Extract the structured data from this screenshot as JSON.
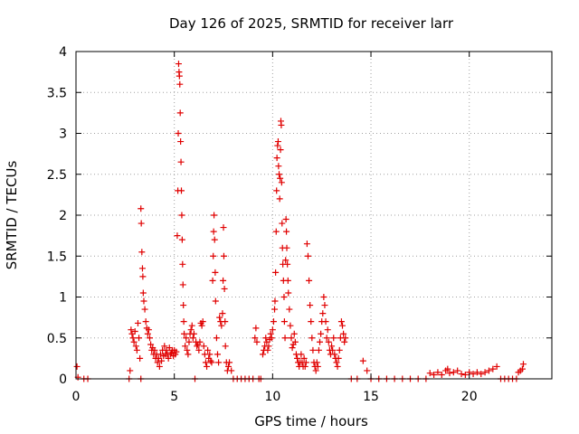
{
  "chart_data": {
    "type": "scatter",
    "title": "Day 126 of 2025, SRMTID for receiver larr",
    "xlabel": "GPS time / hours",
    "ylabel": "SRMTID / TECUs",
    "xlim": [
      0,
      24.2
    ],
    "ylim": [
      0,
      4
    ],
    "x_ticks": [
      0,
      5,
      10,
      15,
      20
    ],
    "x_tick_labels": [
      "0",
      "5",
      "10",
      "15",
      "20"
    ],
    "y_ticks": [
      0,
      0.5,
      1,
      1.5,
      2,
      2.5,
      3,
      3.5,
      4
    ],
    "y_tick_labels": [
      "0",
      "0.5",
      "1",
      "1.5",
      "2",
      "2.5",
      "3",
      "3.5",
      "4"
    ],
    "grid": true,
    "marker": "plus",
    "colors": {
      "marker": "#e00000",
      "grid": "#a0a0a0",
      "axis": "#000000"
    },
    "series": [
      {
        "name": "SRMTID",
        "points": [
          [
            0.05,
            0.15
          ],
          [
            0.1,
            0.02
          ],
          [
            0.4,
            0.0
          ],
          [
            0.6,
            0.0
          ],
          [
            2.7,
            0.0
          ],
          [
            2.75,
            0.1
          ],
          [
            2.8,
            0.6
          ],
          [
            2.85,
            0.55
          ],
          [
            2.9,
            0.5
          ],
          [
            2.95,
            0.45
          ],
          [
            3.0,
            0.58
          ],
          [
            3.05,
            0.4
          ],
          [
            3.1,
            0.35
          ],
          [
            3.15,
            0.68
          ],
          [
            3.2,
            0.5
          ],
          [
            3.25,
            0.25
          ],
          [
            3.3,
            0.0
          ],
          [
            3.3,
            2.08
          ],
          [
            3.32,
            1.9
          ],
          [
            3.35,
            1.55
          ],
          [
            3.38,
            1.35
          ],
          [
            3.4,
            1.25
          ],
          [
            3.42,
            1.05
          ],
          [
            3.45,
            0.95
          ],
          [
            3.5,
            0.85
          ],
          [
            3.55,
            0.7
          ],
          [
            3.6,
            0.62
          ],
          [
            3.65,
            0.55
          ],
          [
            3.7,
            0.6
          ],
          [
            3.75,
            0.5
          ],
          [
            3.8,
            0.42
          ],
          [
            3.85,
            0.35
          ],
          [
            3.9,
            0.38
          ],
          [
            3.95,
            0.3
          ],
          [
            4.0,
            0.35
          ],
          [
            4.05,
            0.25
          ],
          [
            4.1,
            0.3
          ],
          [
            4.15,
            0.2
          ],
          [
            4.2,
            0.25
          ],
          [
            4.25,
            0.15
          ],
          [
            4.3,
            0.3
          ],
          [
            4.35,
            0.22
          ],
          [
            4.4,
            0.35
          ],
          [
            4.45,
            0.28
          ],
          [
            4.5,
            0.4
          ],
          [
            4.55,
            0.3
          ],
          [
            4.6,
            0.35
          ],
          [
            4.65,
            0.3
          ],
          [
            4.7,
            0.25
          ],
          [
            4.75,
            0.38
          ],
          [
            4.8,
            0.3
          ],
          [
            4.85,
            0.32
          ],
          [
            4.9,
            0.35
          ],
          [
            4.95,
            0.28
          ],
          [
            5.0,
            0.35
          ],
          [
            5.05,
            0.3
          ],
          [
            5.1,
            0.33
          ],
          [
            5.15,
            1.75
          ],
          [
            5.18,
            2.3
          ],
          [
            5.2,
            3.0
          ],
          [
            5.22,
            3.85
          ],
          [
            5.24,
            3.75
          ],
          [
            5.26,
            3.7
          ],
          [
            5.28,
            3.6
          ],
          [
            5.3,
            3.25
          ],
          [
            5.32,
            2.9
          ],
          [
            5.34,
            2.65
          ],
          [
            5.36,
            2.3
          ],
          [
            5.38,
            2.0
          ],
          [
            5.4,
            1.7
          ],
          [
            5.42,
            1.4
          ],
          [
            5.44,
            1.15
          ],
          [
            5.46,
            0.9
          ],
          [
            5.48,
            0.7
          ],
          [
            5.5,
            0.55
          ],
          [
            5.55,
            0.4
          ],
          [
            5.6,
            0.5
          ],
          [
            5.65,
            0.35
          ],
          [
            5.7,
            0.3
          ],
          [
            5.75,
            0.45
          ],
          [
            5.8,
            0.55
          ],
          [
            5.85,
            0.6
          ],
          [
            5.9,
            0.65
          ],
          [
            5.95,
            0.5
          ],
          [
            6.0,
            0.55
          ],
          [
            6.05,
            0.0
          ],
          [
            6.1,
            0.45
          ],
          [
            6.15,
            0.4
          ],
          [
            6.2,
            0.42
          ],
          [
            6.25,
            0.35
          ],
          [
            6.3,
            0.45
          ],
          [
            6.35,
            0.68
          ],
          [
            6.4,
            0.65
          ],
          [
            6.45,
            0.7
          ],
          [
            6.5,
            0.4
          ],
          [
            6.55,
            0.3
          ],
          [
            6.6,
            0.2
          ],
          [
            6.65,
            0.15
          ],
          [
            6.7,
            0.35
          ],
          [
            6.75,
            0.25
          ],
          [
            6.8,
            0.3
          ],
          [
            6.85,
            0.22
          ],
          [
            6.9,
            0.2
          ],
          [
            6.95,
            1.2
          ],
          [
            6.98,
            1.5
          ],
          [
            7.0,
            1.8
          ],
          [
            7.02,
            2.0
          ],
          [
            7.05,
            1.7
          ],
          [
            7.08,
            1.3
          ],
          [
            7.1,
            0.95
          ],
          [
            7.15,
            0.5
          ],
          [
            7.2,
            0.3
          ],
          [
            7.25,
            0.2
          ],
          [
            7.3,
            0.75
          ],
          [
            7.35,
            0.7
          ],
          [
            7.4,
            0.65
          ],
          [
            7.45,
            0.8
          ],
          [
            7.48,
            1.2
          ],
          [
            7.5,
            1.85
          ],
          [
            7.52,
            1.5
          ],
          [
            7.55,
            1.1
          ],
          [
            7.58,
            0.7
          ],
          [
            7.6,
            0.4
          ],
          [
            7.65,
            0.2
          ],
          [
            7.7,
            0.1
          ],
          [
            7.75,
            0.15
          ],
          [
            7.8,
            0.2
          ],
          [
            7.9,
            0.1
          ],
          [
            8.0,
            0.0
          ],
          [
            8.2,
            0.0
          ],
          [
            8.4,
            0.0
          ],
          [
            8.6,
            0.0
          ],
          [
            8.8,
            0.0
          ],
          [
            9.0,
            0.0
          ],
          [
            9.1,
            0.5
          ],
          [
            9.15,
            0.62
          ],
          [
            9.2,
            0.45
          ],
          [
            9.3,
            0.0
          ],
          [
            9.4,
            0.0
          ],
          [
            9.5,
            0.3
          ],
          [
            9.55,
            0.35
          ],
          [
            9.6,
            0.4
          ],
          [
            9.65,
            0.5
          ],
          [
            9.7,
            0.45
          ],
          [
            9.75,
            0.35
          ],
          [
            9.8,
            0.4
          ],
          [
            9.85,
            0.48
          ],
          [
            9.9,
            0.55
          ],
          [
            9.95,
            0.5
          ],
          [
            10.0,
            0.6
          ],
          [
            10.05,
            0.7
          ],
          [
            10.1,
            0.85
          ],
          [
            10.12,
            0.95
          ],
          [
            10.15,
            1.3
          ],
          [
            10.18,
            1.8
          ],
          [
            10.2,
            2.3
          ],
          [
            10.22,
            2.7
          ],
          [
            10.25,
            2.85
          ],
          [
            10.28,
            2.9
          ],
          [
            10.3,
            2.6
          ],
          [
            10.33,
            2.5
          ],
          [
            10.36,
            2.2
          ],
          [
            10.38,
            2.45
          ],
          [
            10.4,
            2.8
          ],
          [
            10.42,
            3.15
          ],
          [
            10.44,
            3.1
          ],
          [
            10.46,
            2.4
          ],
          [
            10.48,
            1.9
          ],
          [
            10.5,
            1.6
          ],
          [
            10.52,
            1.4
          ],
          [
            10.55,
            1.2
          ],
          [
            10.58,
            1.0
          ],
          [
            10.6,
            0.7
          ],
          [
            10.63,
            0.5
          ],
          [
            10.66,
            1.45
          ],
          [
            10.68,
            1.95
          ],
          [
            10.7,
            1.8
          ],
          [
            10.72,
            1.6
          ],
          [
            10.75,
            1.4
          ],
          [
            10.78,
            1.2
          ],
          [
            10.8,
            1.05
          ],
          [
            10.85,
            0.85
          ],
          [
            10.9,
            0.65
          ],
          [
            10.95,
            0.5
          ],
          [
            11.0,
            0.38
          ],
          [
            11.05,
            0.42
          ],
          [
            11.1,
            0.55
          ],
          [
            11.15,
            0.45
          ],
          [
            11.2,
            0.3
          ],
          [
            11.25,
            0.25
          ],
          [
            11.3,
            0.2
          ],
          [
            11.35,
            0.15
          ],
          [
            11.4,
            0.2
          ],
          [
            11.45,
            0.3
          ],
          [
            11.5,
            0.2
          ],
          [
            11.55,
            0.15
          ],
          [
            11.6,
            0.25
          ],
          [
            11.65,
            0.15
          ],
          [
            11.7,
            0.2
          ],
          [
            11.75,
            1.65
          ],
          [
            11.8,
            1.5
          ],
          [
            11.85,
            1.2
          ],
          [
            11.9,
            0.9
          ],
          [
            11.95,
            0.7
          ],
          [
            12.0,
            0.5
          ],
          [
            12.05,
            0.35
          ],
          [
            12.1,
            0.2
          ],
          [
            12.15,
            0.15
          ],
          [
            12.2,
            0.1
          ],
          [
            12.25,
            0.2
          ],
          [
            12.3,
            0.15
          ],
          [
            12.35,
            0.35
          ],
          [
            12.4,
            0.45
          ],
          [
            12.45,
            0.55
          ],
          [
            12.5,
            0.7
          ],
          [
            12.55,
            0.8
          ],
          [
            12.6,
            1.0
          ],
          [
            12.65,
            0.9
          ],
          [
            12.7,
            0.7
          ],
          [
            12.75,
            0.5
          ],
          [
            12.8,
            0.6
          ],
          [
            12.85,
            0.45
          ],
          [
            12.9,
            0.35
          ],
          [
            12.95,
            0.3
          ],
          [
            13.0,
            0.4
          ],
          [
            13.05,
            0.35
          ],
          [
            13.1,
            0.5
          ],
          [
            13.15,
            0.3
          ],
          [
            13.2,
            0.25
          ],
          [
            13.25,
            0.2
          ],
          [
            13.3,
            0.15
          ],
          [
            13.35,
            0.25
          ],
          [
            13.4,
            0.35
          ],
          [
            13.45,
            0.5
          ],
          [
            13.5,
            0.7
          ],
          [
            13.55,
            0.65
          ],
          [
            13.6,
            0.55
          ],
          [
            13.65,
            0.45
          ],
          [
            13.7,
            0.5
          ],
          [
            14.0,
            0.0
          ],
          [
            14.3,
            0.0
          ],
          [
            14.6,
            0.22
          ],
          [
            14.8,
            0.1
          ],
          [
            15.0,
            0.0
          ],
          [
            15.4,
            0.0
          ],
          [
            15.8,
            0.0
          ],
          [
            16.2,
            0.0
          ],
          [
            16.6,
            0.0
          ],
          [
            17.0,
            0.0
          ],
          [
            17.4,
            0.0
          ],
          [
            17.8,
            0.0
          ],
          [
            18.0,
            0.07
          ],
          [
            18.2,
            0.05
          ],
          [
            18.4,
            0.08
          ],
          [
            18.6,
            0.05
          ],
          [
            18.8,
            0.1
          ],
          [
            18.9,
            0.12
          ],
          [
            19.0,
            0.07
          ],
          [
            19.2,
            0.08
          ],
          [
            19.4,
            0.1
          ],
          [
            19.6,
            0.06
          ],
          [
            19.8,
            0.05
          ],
          [
            20.0,
            0.08
          ],
          [
            20.2,
            0.06
          ],
          [
            20.4,
            0.08
          ],
          [
            20.6,
            0.06
          ],
          [
            20.8,
            0.08
          ],
          [
            21.0,
            0.1
          ],
          [
            21.2,
            0.12
          ],
          [
            21.4,
            0.15
          ],
          [
            21.6,
            0.0
          ],
          [
            21.8,
            0.0
          ],
          [
            22.0,
            0.0
          ],
          [
            22.2,
            0.0
          ],
          [
            22.4,
            0.0
          ],
          [
            22.5,
            0.08
          ],
          [
            22.6,
            0.1
          ],
          [
            22.7,
            0.12
          ],
          [
            22.75,
            0.18
          ]
        ]
      }
    ]
  }
}
